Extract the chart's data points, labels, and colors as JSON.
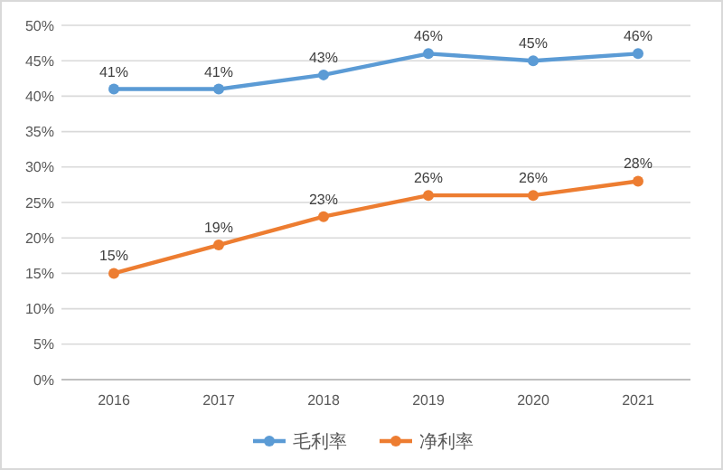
{
  "chart_data": {
    "type": "line",
    "categories": [
      "2016",
      "2017",
      "2018",
      "2019",
      "2020",
      "2021"
    ],
    "series": [
      {
        "name": "毛利率",
        "color": "#5b9bd5",
        "values": [
          41,
          41,
          43,
          46,
          45,
          46
        ],
        "value_labels": [
          "41%",
          "41%",
          "43%",
          "46%",
          "45%",
          "46%"
        ]
      },
      {
        "name": "净利率",
        "color": "#ed7d31",
        "values": [
          15,
          19,
          23,
          26,
          26,
          28
        ],
        "value_labels": [
          "15%",
          "19%",
          "23%",
          "26%",
          "26%",
          "28%"
        ]
      }
    ],
    "ylim": [
      0,
      50
    ],
    "yticks": [
      {
        "value": 0,
        "label": "0%"
      },
      {
        "value": 5,
        "label": "5%"
      },
      {
        "value": 10,
        "label": "10%"
      },
      {
        "value": 15,
        "label": "15%"
      },
      {
        "value": 20,
        "label": "20%"
      },
      {
        "value": 25,
        "label": "25%"
      },
      {
        "value": 30,
        "label": "30%"
      },
      {
        "value": 35,
        "label": "35%"
      },
      {
        "value": 40,
        "label": "40%"
      },
      {
        "value": 45,
        "label": "45%"
      },
      {
        "value": 50,
        "label": "50%"
      }
    ],
    "grid": "y",
    "legend": "bottom",
    "marker": "circle",
    "line_style": "solid"
  }
}
